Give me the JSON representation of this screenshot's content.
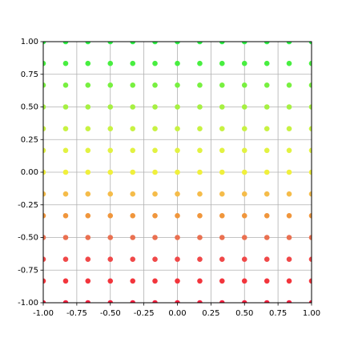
{
  "chart_data": {
    "type": "scatter",
    "grid": true,
    "x": [
      -1,
      -0.833,
      -0.667,
      -0.5,
      -0.333,
      -0.167,
      0,
      0.167,
      0.333,
      0.5,
      0.667,
      0.833,
      1
    ],
    "series": [
      {
        "color": "#f5203f",
        "values": [
          -1,
          -1,
          -1,
          -1,
          -1,
          -1,
          -1,
          -1,
          -1,
          -1,
          -1,
          -1,
          -1
        ]
      },
      {
        "color": "#f2353c",
        "values": [
          -0.833,
          -0.833,
          -0.833,
          -0.833,
          -0.833,
          -0.833,
          -0.833,
          -0.833,
          -0.833,
          -0.833,
          -0.833,
          -0.833,
          -0.833
        ]
      },
      {
        "color": "#f04848",
        "values": [
          -0.667,
          -0.667,
          -0.667,
          -0.667,
          -0.667,
          -0.667,
          -0.667,
          -0.667,
          -0.667,
          -0.667,
          -0.667,
          -0.667,
          -0.667
        ]
      },
      {
        "color": "#ea7050",
        "values": [
          -0.5,
          -0.5,
          -0.5,
          -0.5,
          -0.5,
          -0.5,
          -0.5,
          -0.5,
          -0.5,
          -0.5,
          -0.5,
          -0.5,
          -0.5
        ]
      },
      {
        "color": "#f0963c",
        "values": [
          -0.333,
          -0.333,
          -0.333,
          -0.333,
          -0.333,
          -0.333,
          -0.333,
          -0.333,
          -0.333,
          -0.333,
          -0.333,
          -0.333,
          -0.333
        ]
      },
      {
        "color": "#f5bc4a",
        "values": [
          -0.167,
          -0.167,
          -0.167,
          -0.167,
          -0.167,
          -0.167,
          -0.167,
          -0.167,
          -0.167,
          -0.167,
          -0.167,
          -0.167,
          -0.167
        ]
      },
      {
        "color": "#f0f03c",
        "values": [
          0,
          0,
          0,
          0,
          0,
          0,
          0,
          0,
          0,
          0,
          0,
          0,
          0
        ]
      },
      {
        "color": "#e2f242",
        "values": [
          0.167,
          0.167,
          0.167,
          0.167,
          0.167,
          0.167,
          0.167,
          0.167,
          0.167,
          0.167,
          0.167,
          0.167,
          0.167
        ]
      },
      {
        "color": "#c8f242",
        "values": [
          0.333,
          0.333,
          0.333,
          0.333,
          0.333,
          0.333,
          0.333,
          0.333,
          0.333,
          0.333,
          0.333,
          0.333,
          0.333
        ]
      },
      {
        "color": "#a6f042",
        "values": [
          0.5,
          0.5,
          0.5,
          0.5,
          0.5,
          0.5,
          0.5,
          0.5,
          0.5,
          0.5,
          0.5,
          0.5,
          0.5
        ]
      },
      {
        "color": "#78f040",
        "values": [
          0.667,
          0.667,
          0.667,
          0.667,
          0.667,
          0.667,
          0.667,
          0.667,
          0.667,
          0.667,
          0.667,
          0.667,
          0.667
        ]
      },
      {
        "color": "#48ee40",
        "values": [
          0.833,
          0.833,
          0.833,
          0.833,
          0.833,
          0.833,
          0.833,
          0.833,
          0.833,
          0.833,
          0.833,
          0.833,
          0.833
        ]
      },
      {
        "color": "#2cee44",
        "values": [
          1,
          1,
          1,
          1,
          1,
          1,
          1,
          1,
          1,
          1,
          1,
          1,
          1
        ]
      }
    ],
    "xlim": [
      -1,
      1
    ],
    "ylim": [
      -1,
      1
    ],
    "xticks": [
      {
        "value": -1,
        "label": "-1.00"
      },
      {
        "value": -0.75,
        "label": "-0.75"
      },
      {
        "value": -0.5,
        "label": "-0.50"
      },
      {
        "value": -0.25,
        "label": "-0.25"
      },
      {
        "value": 0,
        "label": "0.00"
      },
      {
        "value": 0.25,
        "label": "0.25"
      },
      {
        "value": 0.5,
        "label": "0.50"
      },
      {
        "value": 0.75,
        "label": "0.75"
      },
      {
        "value": 1,
        "label": "1.00"
      }
    ],
    "yticks": [
      {
        "value": -1,
        "label": "-1.00"
      },
      {
        "value": -0.75,
        "label": "-0.75"
      },
      {
        "value": -0.5,
        "label": "-0.50"
      },
      {
        "value": -0.25,
        "label": "-0.25"
      },
      {
        "value": 0,
        "label": "0.00"
      },
      {
        "value": 0.25,
        "label": "0.25"
      },
      {
        "value": 0.5,
        "label": "0.50"
      },
      {
        "value": 0.75,
        "label": "0.75"
      },
      {
        "value": 1,
        "label": "1.00"
      }
    ]
  }
}
